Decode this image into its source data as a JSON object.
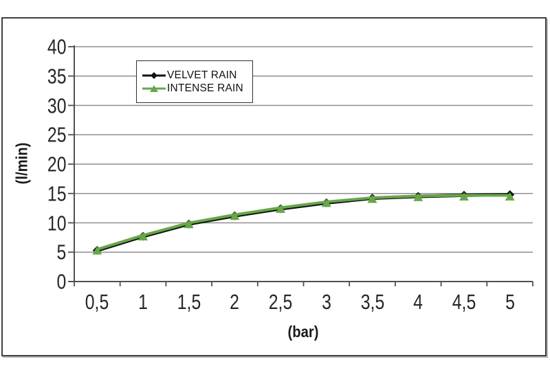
{
  "chart_data": {
    "type": "line",
    "xlabel": "(bar)",
    "ylabel": "(l/min)",
    "categories": [
      "0,5",
      "1",
      "1,5",
      "2",
      "2,5",
      "3",
      "3,5",
      "4",
      "4,5",
      "5"
    ],
    "x_values": [
      0.5,
      1,
      1.5,
      2,
      2.5,
      3,
      3.5,
      4,
      4.5,
      5
    ],
    "yticks": [
      0,
      5,
      10,
      15,
      20,
      25,
      30,
      35,
      40
    ],
    "ylim": [
      0,
      40
    ],
    "grid": "horizontal",
    "legend_position": "top-left-inside",
    "series": [
      {
        "name": "VELVET RAIN",
        "marker": "diamond",
        "color": "#111111",
        "values": [
          5.3,
          7.7,
          9.8,
          11.2,
          12.4,
          13.4,
          14.2,
          14.5,
          14.7,
          14.8
        ]
      },
      {
        "name": "INTENSE RAIN",
        "marker": "triangle",
        "color": "#67a74a",
        "values": [
          5.3,
          7.7,
          9.8,
          11.2,
          12.4,
          13.4,
          14.1,
          14.4,
          14.5,
          14.5
        ]
      }
    ],
    "colors": {
      "gridline": "#8f8f8f",
      "axis": "#4f4f4f",
      "tick_text": "#262626",
      "frame_border": "#3f3f3f"
    }
  }
}
